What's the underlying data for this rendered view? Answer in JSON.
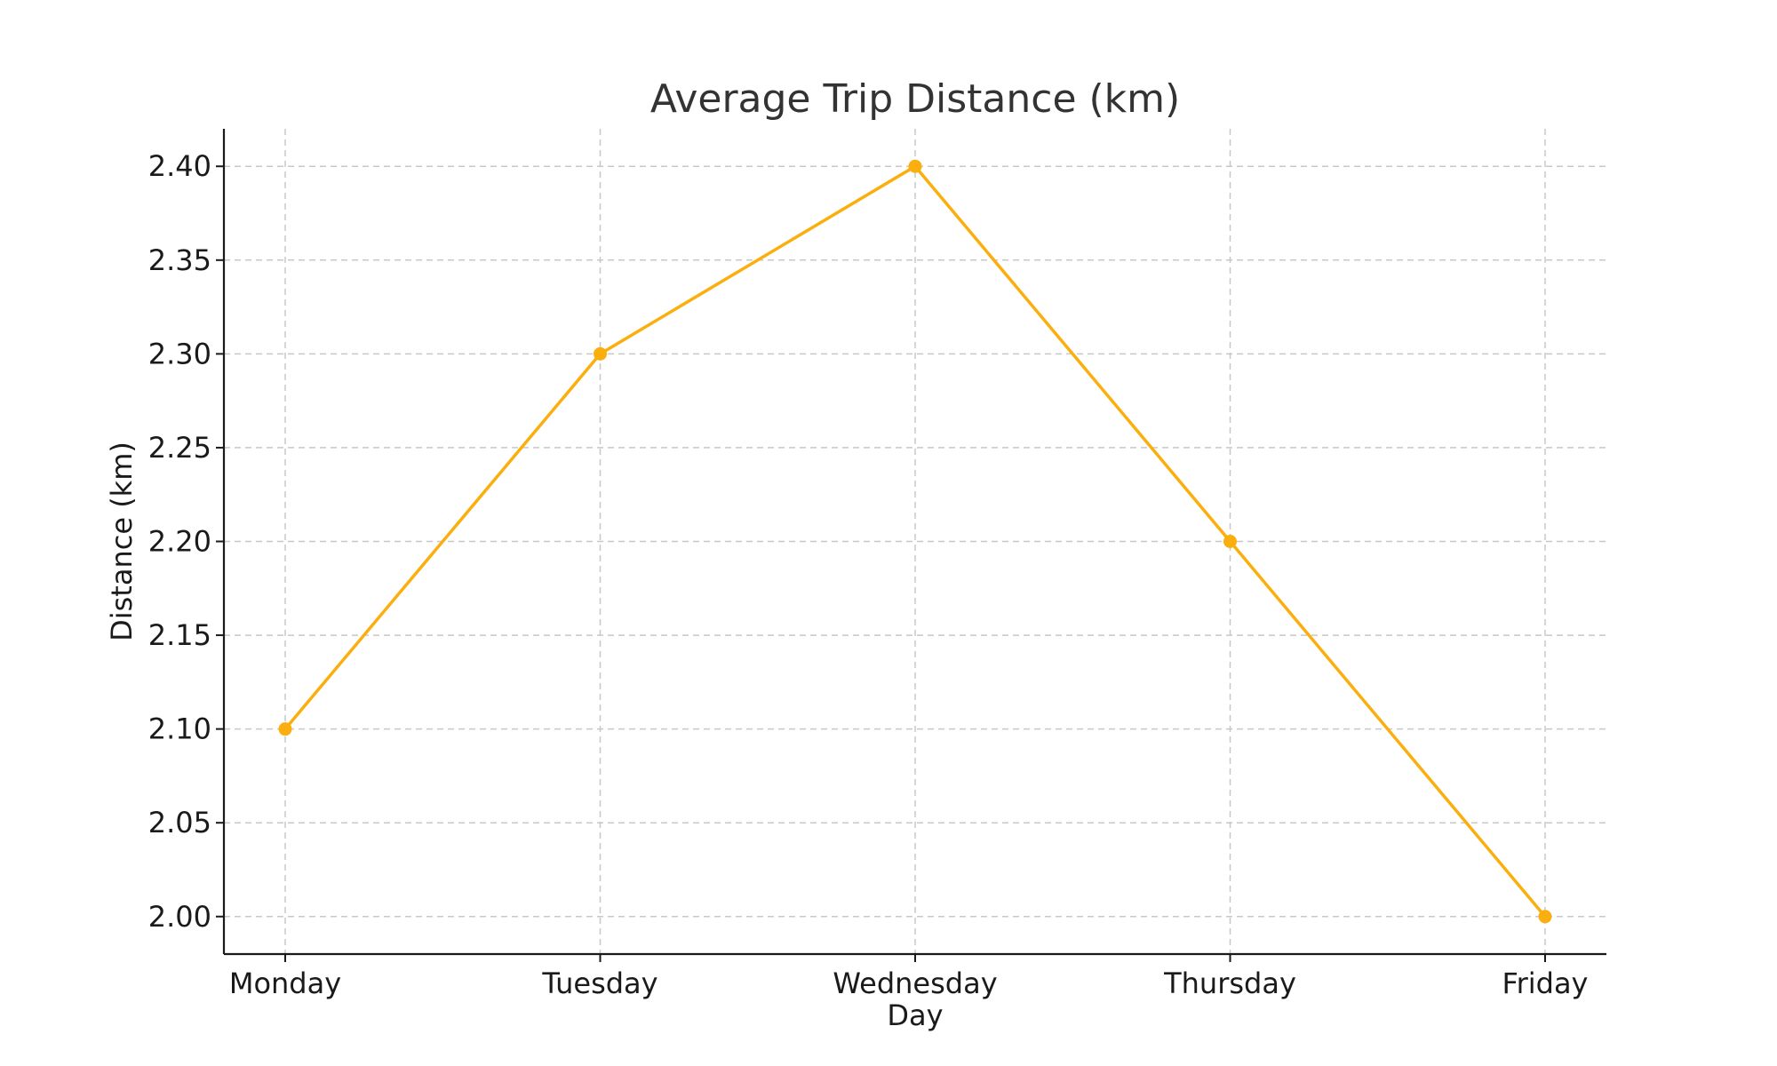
{
  "chart_data": {
    "type": "line",
    "title": "Average Trip Distance (km)",
    "xlabel": "Day",
    "ylabel": "Distance (km)",
    "categories": [
      "Monday",
      "Tuesday",
      "Wednesday",
      "Thursday",
      "Friday"
    ],
    "series": [
      {
        "values": [
          2.1,
          2.3,
          2.4,
          2.2,
          2.0
        ],
        "color": "#FBAF0F",
        "marker": "circle"
      }
    ],
    "ylim": [
      1.98,
      2.42
    ],
    "yticks": [
      2.0,
      2.05,
      2.1,
      2.15,
      2.2,
      2.25,
      2.3,
      2.35,
      2.4
    ],
    "ytick_labels": [
      "2.00",
      "2.05",
      "2.10",
      "2.15",
      "2.20",
      "2.25",
      "2.30",
      "2.35",
      "2.40"
    ],
    "grid": true,
    "legend": "none"
  }
}
